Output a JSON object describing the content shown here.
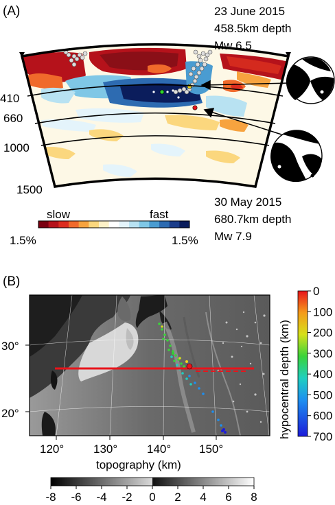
{
  "panel_a": {
    "label": "(A)",
    "event1": {
      "date": "23 June 2015",
      "depth": "458.5km depth",
      "magnitude": "Mw 6.5"
    },
    "event2": {
      "date": "30 May 2015",
      "depth": "680.7km depth",
      "magnitude": "Mw 7.9"
    },
    "depth_labels": [
      "410",
      "660",
      "1000",
      "1500"
    ],
    "colorbar": {
      "slow_label": "slow",
      "fast_label": "fast",
      "left_value": "1.5%",
      "right_value": "1.5%",
      "colors": [
        "#7a0010",
        "#b5121b",
        "#dc2d1f",
        "#f06a2b",
        "#f7a33f",
        "#fbd77e",
        "#fdf1c7",
        "#ffffff",
        "#e4f4fb",
        "#b8e2f2",
        "#7fc7e6",
        "#4a9cd1",
        "#2d6bb1",
        "#1b3d8a",
        "#0b1d5c"
      ]
    }
  },
  "panel_b": {
    "label": "(B)",
    "lat_labels": [
      "30°",
      "20°"
    ],
    "lon_labels": [
      "120°",
      "130°",
      "140°",
      "150°"
    ],
    "xlabel": "topography (km)",
    "depth_scale": {
      "title": "hypocentral depth (km)",
      "ticks": [
        "0",
        "100",
        "200",
        "300",
        "400",
        "500",
        "600",
        "700"
      ]
    },
    "topo_scale": {
      "ticks": [
        "-8",
        "-6",
        "-4",
        "-2",
        "0",
        "2",
        "4",
        "6",
        "8"
      ]
    }
  },
  "colors": {
    "cross_section_line": "#e8141b",
    "event_green": "#2fd32f",
    "event_yellow": "#f2d61b",
    "event_red": "#e8141b"
  }
}
